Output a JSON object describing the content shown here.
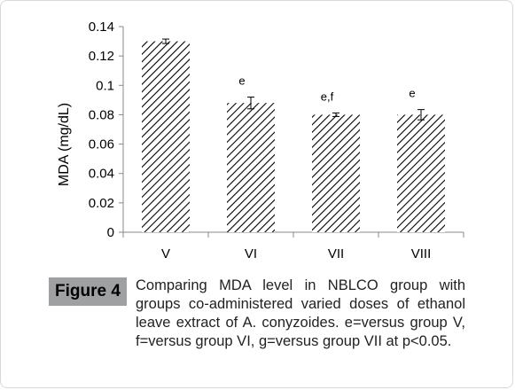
{
  "chart_data": {
    "type": "bar",
    "categories": [
      "V",
      "VI",
      "VII",
      "VIII"
    ],
    "values": [
      0.13,
      0.088,
      0.08,
      0.08
    ],
    "errors": [
      0.0015,
      0.004,
      0.0012,
      0.0035
    ],
    "significance": [
      "",
      "e",
      "e,f",
      "e"
    ],
    "ylabel": "MDA (mg/dL)",
    "ylim": [
      0,
      0.14
    ],
    "yticks": [
      "0",
      "0.02",
      "0.04",
      "0.06",
      "0.08",
      "0.1",
      "0.12",
      "0.14"
    ],
    "yticks_values": [
      0,
      0.02,
      0.04,
      0.06,
      0.08,
      0.1,
      0.12,
      0.14
    ],
    "bar_pattern": "diagonal-hatch",
    "grid": false
  },
  "caption": {
    "label": "Figure 4",
    "text": "Comparing MDA level in NBLCO group with groups co-administered varied doses of ethanol leave extract of A. conyzoides. e=versus group V, f=versus group VI, g=versus group VII at p<0.05."
  },
  "colors": {
    "bar_hatch": "#000000",
    "caption_label_bg": "#9fa0a2"
  }
}
